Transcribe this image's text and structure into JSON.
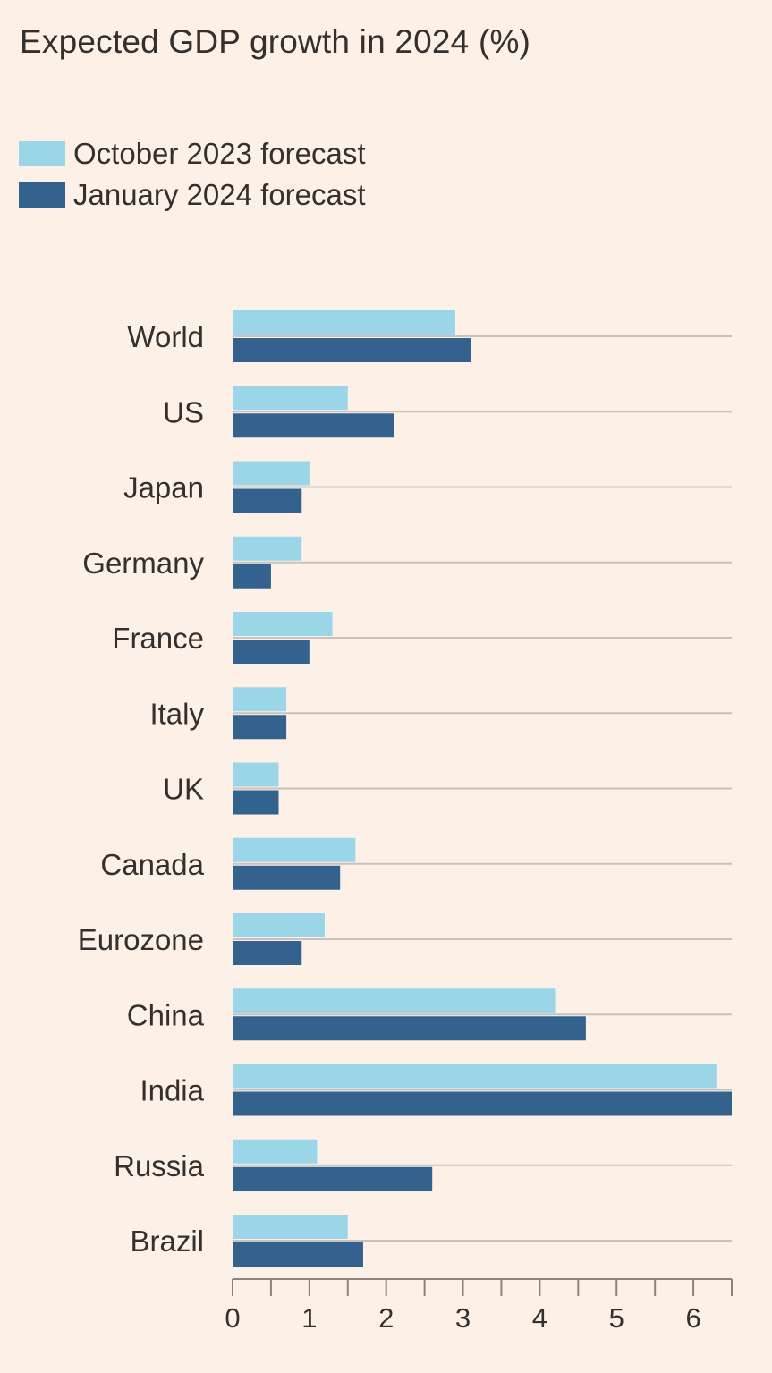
{
  "title": "Expected GDP growth in 2024 (%)",
  "legend": [
    {
      "label": "October 2023 forecast",
      "color": "#9bd6e8"
    },
    {
      "label": "January 2024 forecast",
      "color": "#33628e"
    }
  ],
  "chart_data": {
    "type": "bar",
    "orientation": "horizontal",
    "title": "Expected GDP growth in 2024 (%)",
    "categories": [
      "World",
      "US",
      "Japan",
      "Germany",
      "France",
      "Italy",
      "UK",
      "Canada",
      "Eurozone",
      "China",
      "India",
      "Russia",
      "Brazil"
    ],
    "series": [
      {
        "name": "October 2023 forecast",
        "color": "#9bd6e8",
        "values": [
          2.9,
          1.5,
          1.0,
          0.9,
          1.3,
          0.7,
          0.6,
          1.6,
          1.2,
          4.2,
          6.3,
          1.1,
          1.5
        ]
      },
      {
        "name": "January 2024 forecast",
        "color": "#33628e",
        "values": [
          3.1,
          2.1,
          0.9,
          0.5,
          1.0,
          0.7,
          0.6,
          1.4,
          0.9,
          4.6,
          6.5,
          2.6,
          1.7
        ]
      }
    ],
    "xlim": [
      0,
      6.5
    ],
    "major_ticks": [
      0,
      1,
      2,
      3,
      4,
      5,
      6
    ],
    "minor_ticks": [
      0.5,
      1.5,
      2.5,
      3.5,
      4.5,
      5.5,
      6.5
    ],
    "xlabel": "",
    "ylabel": "",
    "grid": true,
    "legend_position": "top-left"
  }
}
